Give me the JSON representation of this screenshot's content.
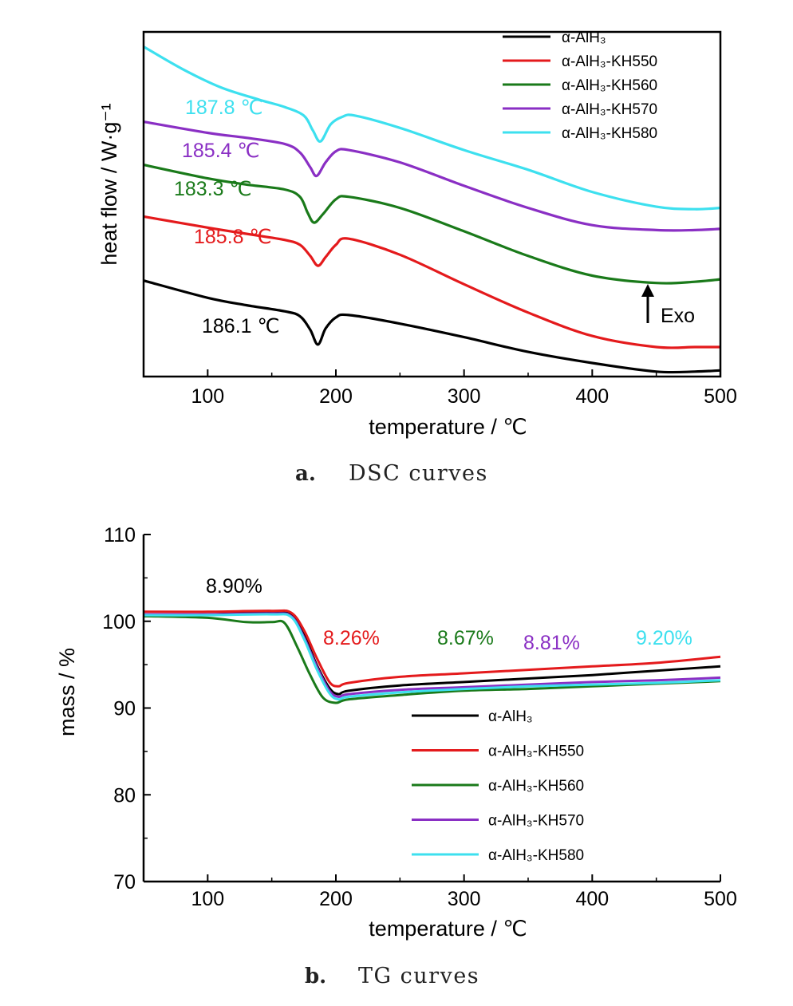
{
  "chart_data": [
    {
      "type": "line",
      "caption": {
        "letter": "a.",
        "text": "DSC curves"
      },
      "xlabel": "temperature / ℃",
      "ylabel": "heat flow / W·g⁻¹",
      "xlim": [
        50,
        500
      ],
      "xticks": [
        "100",
        "200",
        "300",
        "400",
        "500"
      ],
      "y_ticks_shown": false,
      "legend_position": "top-right",
      "exo_label": "Exo",
      "series": [
        {
          "name": "α-AlH₃",
          "color": "#000000",
          "x": [
            50,
            100,
            130,
            160,
            172,
            180,
            186,
            192,
            200,
            210,
            250,
            300,
            350,
            400,
            450,
            480,
            500
          ],
          "y": [
            0.78,
            0.64,
            0.58,
            0.53,
            0.49,
            0.38,
            0.26,
            0.39,
            0.48,
            0.5,
            0.43,
            0.32,
            0.2,
            0.11,
            0.04,
            0.04,
            0.05
          ],
          "peak_label": "186.1 ℃"
        },
        {
          "name": "α-AlH₃-KH550",
          "color": "#e41a1c",
          "x": [
            50,
            100,
            130,
            160,
            172,
            180,
            186,
            192,
            200,
            210,
            250,
            300,
            350,
            400,
            450,
            480,
            500
          ],
          "y": [
            1.3,
            1.21,
            1.16,
            1.11,
            1.07,
            0.98,
            0.9,
            0.97,
            1.07,
            1.12,
            0.99,
            0.75,
            0.52,
            0.33,
            0.24,
            0.24,
            0.24
          ],
          "peak_label": "185.8 ℃"
        },
        {
          "name": "α-AlH₃-KH560",
          "color": "#1a7a1a",
          "x": [
            50,
            100,
            130,
            160,
            172,
            178,
            183,
            190,
            200,
            210,
            250,
            300,
            350,
            400,
            450,
            480,
            500
          ],
          "y": [
            1.72,
            1.61,
            1.56,
            1.52,
            1.46,
            1.33,
            1.25,
            1.32,
            1.44,
            1.46,
            1.37,
            1.18,
            0.98,
            0.82,
            0.76,
            0.77,
            0.79
          ],
          "peak_label": "183.3 ℃"
        },
        {
          "name": "α-AlH₃-KH570",
          "color": "#8a2fc4",
          "x": [
            50,
            100,
            130,
            160,
            172,
            180,
            185,
            192,
            200,
            210,
            250,
            300,
            350,
            400,
            450,
            480,
            500
          ],
          "y": [
            2.07,
            1.98,
            1.94,
            1.89,
            1.82,
            1.7,
            1.63,
            1.74,
            1.83,
            1.84,
            1.74,
            1.55,
            1.37,
            1.23,
            1.19,
            1.19,
            1.2
          ],
          "peak_label": "185.4 ℃"
        },
        {
          "name": "α-AlH₃-KH580",
          "color": "#3de0ef",
          "x": [
            50,
            80,
            110,
            140,
            160,
            175,
            182,
            188,
            196,
            205,
            215,
            250,
            300,
            350,
            400,
            450,
            480,
            500
          ],
          "y": [
            2.68,
            2.5,
            2.35,
            2.25,
            2.19,
            2.12,
            2.0,
            1.91,
            2.05,
            2.11,
            2.12,
            2.02,
            1.84,
            1.68,
            1.5,
            1.38,
            1.36,
            1.37
          ],
          "peak_label": "187.8 ℃"
        }
      ]
    },
    {
      "type": "line",
      "caption": {
        "letter": "b.",
        "text": "TG curves"
      },
      "xlabel": "temperature / ℃",
      "ylabel": "mass / %",
      "xlim": [
        50,
        500
      ],
      "ylim": [
        70,
        110
      ],
      "xticks": [
        "100",
        "200",
        "300",
        "400",
        "500"
      ],
      "yticks": [
        "70",
        "80",
        "90",
        "100",
        "110"
      ],
      "legend_position": "center-right",
      "mass_loss_labels": [
        {
          "text": "8.90%",
          "color": "#000000"
        },
        {
          "text": "8.26%",
          "color": "#e41a1c"
        },
        {
          "text": "8.67%",
          "color": "#1a7a1a"
        },
        {
          "text": "8.81%",
          "color": "#8a2fc4"
        },
        {
          "text": "9.20%",
          "color": "#3de0ef"
        }
      ],
      "series": [
        {
          "name": "α-AlH₃",
          "color": "#000000",
          "x": [
            50,
            100,
            150,
            165,
            175,
            185,
            195,
            202,
            210,
            250,
            300,
            350,
            400,
            450,
            500
          ],
          "y": [
            100.6,
            100.8,
            101.0,
            100.8,
            98.5,
            95.0,
            92.3,
            91.6,
            92.0,
            92.6,
            93.0,
            93.4,
            93.8,
            94.3,
            94.8
          ]
        },
        {
          "name": "α-AlH₃-KH550",
          "color": "#e41a1c",
          "x": [
            50,
            100,
            150,
            165,
            175,
            185,
            195,
            202,
            210,
            250,
            300,
            350,
            400,
            450,
            500
          ],
          "y": [
            101.1,
            101.1,
            101.2,
            101.0,
            99.0,
            95.8,
            93.0,
            92.5,
            92.9,
            93.6,
            94.0,
            94.4,
            94.8,
            95.2,
            95.9
          ]
        },
        {
          "name": "α-AlH₃-KH560",
          "color": "#1a7a1a",
          "x": [
            50,
            100,
            130,
            150,
            160,
            170,
            180,
            190,
            200,
            210,
            250,
            300,
            350,
            400,
            450,
            500
          ],
          "y": [
            100.6,
            100.4,
            99.9,
            99.9,
            99.8,
            97.0,
            93.8,
            91.2,
            90.6,
            91.0,
            91.5,
            92.0,
            92.2,
            92.5,
            92.8,
            93.1
          ]
        },
        {
          "name": "α-AlH₃-KH570",
          "color": "#8a2fc4",
          "x": [
            50,
            100,
            150,
            165,
            175,
            185,
            195,
            202,
            210,
            250,
            300,
            350,
            400,
            450,
            500
          ],
          "y": [
            100.8,
            100.8,
            100.9,
            100.6,
            98.2,
            94.8,
            92.0,
            91.3,
            91.6,
            92.1,
            92.4,
            92.7,
            93.0,
            93.2,
            93.5
          ]
        },
        {
          "name": "α-AlH₃-KH580",
          "color": "#3de0ef",
          "x": [
            50,
            100,
            150,
            165,
            175,
            185,
            195,
            202,
            210,
            250,
            300,
            350,
            400,
            450,
            500
          ],
          "y": [
            100.7,
            100.7,
            100.8,
            100.5,
            98.0,
            94.5,
            91.7,
            91.0,
            91.3,
            91.8,
            92.2,
            92.5,
            92.7,
            92.9,
            93.2
          ]
        }
      ]
    }
  ]
}
